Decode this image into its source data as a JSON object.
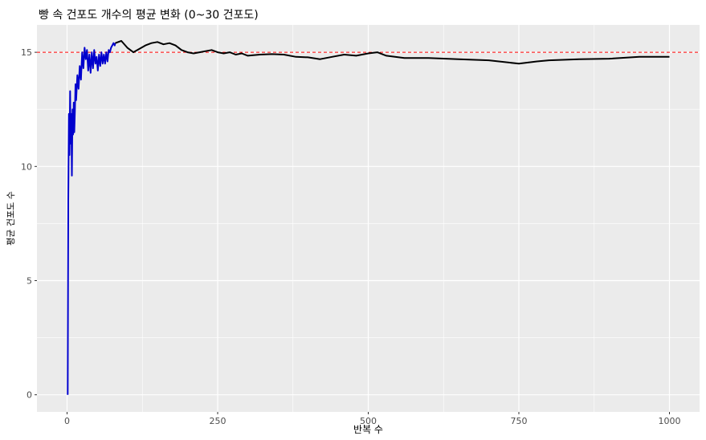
{
  "chart_data": {
    "type": "line",
    "title": "빵 속 건포도 개수의 평균 변화 (0~30 건포도)",
    "xlabel": "반복 수",
    "ylabel": "평균 건포도 수",
    "xlim": [
      -50,
      1050
    ],
    "ylim": [
      -0.75,
      16.2
    ],
    "x_ticks": [
      0,
      250,
      500,
      750,
      1000
    ],
    "y_ticks": [
      0,
      5,
      10,
      15
    ],
    "x_tick_labels": [
      "0",
      "250",
      "500",
      "750",
      "1000"
    ],
    "y_tick_labels": [
      "0",
      "5",
      "10",
      "15"
    ],
    "grid": true,
    "legend": "none",
    "reference_line": {
      "y": 15,
      "style": "dashed",
      "color": "#ff0000"
    },
    "series": [
      {
        "color": "#0000cd",
        "x": [
          1,
          2,
          3,
          4,
          5,
          6,
          7,
          8,
          9,
          10,
          11,
          12,
          13,
          14,
          15,
          17,
          19,
          21,
          23,
          25,
          27,
          29,
          31,
          33,
          35,
          37,
          39,
          41,
          43,
          45,
          47,
          49,
          51,
          53,
          55,
          57,
          59,
          61,
          63,
          65,
          67,
          69,
          71,
          73,
          75,
          77,
          79,
          80
        ],
        "y": [
          0,
          8.5,
          12.3,
          10.5,
          13.3,
          11.0,
          12.3,
          9.6,
          12.5,
          11.4,
          12.8,
          11.5,
          12.5,
          13.6,
          12.9,
          14.0,
          13.4,
          14.4,
          13.8,
          15.0,
          14.3,
          15.2,
          14.7,
          15.1,
          14.2,
          14.9,
          14.1,
          15.0,
          14.3,
          15.1,
          14.5,
          14.8,
          14.2,
          14.9,
          14.4,
          15.0,
          14.5,
          14.9,
          14.5,
          15.0,
          14.6,
          15.1,
          15.0,
          15.2,
          15.3,
          15.4,
          15.3,
          15.4
        ]
      },
      {
        "color": "#000000",
        "x": [
          80,
          90,
          100,
          110,
          120,
          130,
          140,
          150,
          160,
          170,
          180,
          190,
          200,
          210,
          220,
          230,
          240,
          250,
          260,
          270,
          280,
          290,
          300,
          320,
          340,
          360,
          380,
          400,
          420,
          440,
          460,
          480,
          500,
          515,
          530,
          560,
          600,
          650,
          700,
          750,
          780,
          800,
          850,
          900,
          950,
          1000
        ],
        "y": [
          15.4,
          15.5,
          15.2,
          15.0,
          15.15,
          15.3,
          15.4,
          15.45,
          15.35,
          15.4,
          15.3,
          15.1,
          15.0,
          14.95,
          15.0,
          15.05,
          15.1,
          15.0,
          14.95,
          15.0,
          14.9,
          14.95,
          14.85,
          14.9,
          14.92,
          14.9,
          14.8,
          14.78,
          14.7,
          14.8,
          14.9,
          14.85,
          14.95,
          15.0,
          14.85,
          14.75,
          14.75,
          14.7,
          14.65,
          14.5,
          14.6,
          14.65,
          14.7,
          14.72,
          14.8,
          14.8
        ]
      }
    ]
  }
}
